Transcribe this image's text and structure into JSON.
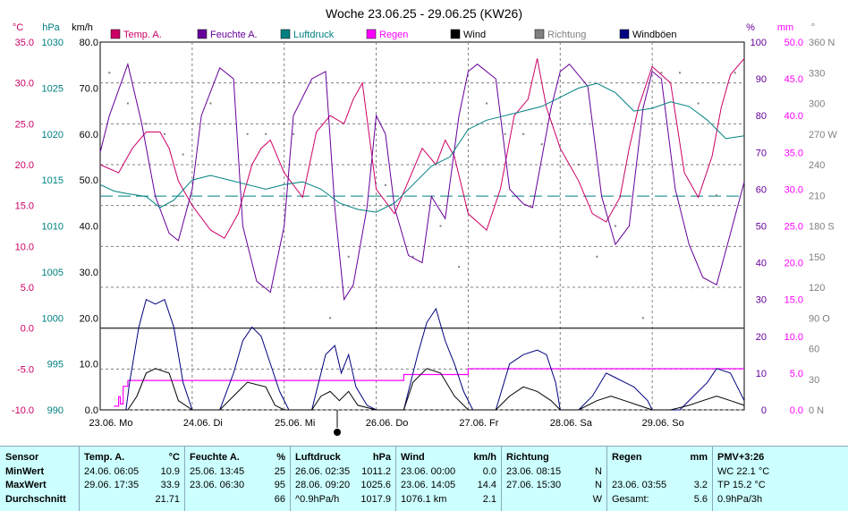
{
  "title": "Woche 23.06.25 - 29.06.25 (KW26)",
  "colors": {
    "temp": "#cc0066",
    "humidity": "#660099",
    "pressure": "#008080",
    "rain": "#ff00ff",
    "wind": "#000000",
    "direction": "#808080",
    "gust": "#000080",
    "table_bg": "#ccffff"
  },
  "axes": {
    "temp_unit": "°C",
    "pressure_unit": "hPa",
    "wind_unit": "km/h",
    "humidity_unit": "%",
    "rain_unit": "mm",
    "direction_unit": "°",
    "temp_ticks": [
      "35.0",
      "30.0",
      "25.0",
      "20.0",
      "15.0",
      "10.0",
      "5.0",
      "0.0",
      "-5.0",
      "-10.0"
    ],
    "pressure_ticks": [
      "1030",
      "1025",
      "1020",
      "1015",
      "1010",
      "1005",
      "1000",
      "995",
      "990"
    ],
    "wind_ticks": [
      "80.0",
      "70.0",
      "60.0",
      "50.0",
      "40.0",
      "30.0",
      "20.0",
      "10.0",
      "0.0"
    ],
    "humidity_ticks": [
      "100",
      "90",
      "80",
      "70",
      "60",
      "50",
      "40",
      "30",
      "20",
      "10",
      "0"
    ],
    "rain_ticks": [
      "50.0",
      "45.0",
      "40.0",
      "35.0",
      "30.0",
      "25.0",
      "20.0",
      "15.0",
      "10.0",
      "5.0",
      "0.0"
    ],
    "direction_ticks": [
      "360 N",
      "330",
      "300",
      "270 W",
      "240",
      "210",
      "180 S",
      "150",
      "120",
      "90 O",
      "60",
      "30",
      "0 N"
    ],
    "day_labels": [
      "23.06.  Mo",
      "24.06.  Di",
      "25.06.  Mi",
      "26.06.  Do",
      "27.06.  Fr",
      "28.06.  Sa",
      "29.06.  So"
    ]
  },
  "legend": [
    {
      "key": "temp",
      "label": "Temp. A.",
      "color": "#cc0066"
    },
    {
      "key": "humidity",
      "label": "Feuchte A.",
      "color": "#660099"
    },
    {
      "key": "pressure",
      "label": "Luftdruck",
      "color": "#008080"
    },
    {
      "key": "rain",
      "label": "Regen",
      "color": "#ff00ff"
    },
    {
      "key": "wind",
      "label": "Wind",
      "color": "#000000"
    },
    {
      "key": "direction",
      "label": "Richtung",
      "color": "#808080"
    },
    {
      "key": "gust",
      "label": "Windböen",
      "color": "#000080"
    }
  ],
  "chart_data": {
    "type": "line",
    "title": "Woche 23.06.25 - 29.06.25 (KW26)",
    "x_categories": [
      "23.06. Mo",
      "24.06. Di",
      "25.06. Mi",
      "26.06. Do",
      "27.06. Fr",
      "28.06. Sa",
      "29.06. So"
    ],
    "series": [
      {
        "name": "Temp. A.",
        "unit": "°C",
        "x_days": [
          0,
          0.2,
          0.35,
          0.5,
          0.65,
          0.75,
          0.85,
          1.0,
          1.2,
          1.35,
          1.5,
          1.65,
          1.75,
          1.85,
          2.0,
          2.2,
          2.35,
          2.5,
          2.65,
          2.75,
          2.85,
          3.0,
          3.2,
          3.35,
          3.5,
          3.65,
          3.75,
          3.85,
          4.0,
          4.2,
          4.35,
          4.5,
          4.65,
          4.75,
          4.85,
          5.0,
          5.2,
          5.35,
          5.5,
          5.65,
          5.75,
          5.85,
          6.0,
          6.2,
          6.35,
          6.5,
          6.65,
          6.75,
          6.85,
          7.0
        ],
        "values": [
          20,
          19,
          22,
          24,
          24,
          22,
          18,
          15,
          12,
          11,
          14,
          20,
          22,
          23,
          19,
          16,
          24,
          26,
          25,
          28,
          30,
          17,
          14,
          18,
          22,
          20,
          23,
          21,
          14,
          12,
          17,
          26,
          28,
          33,
          27,
          22,
          18,
          14,
          13,
          16,
          22,
          27,
          32,
          30,
          19,
          16,
          21,
          27,
          31,
          33
        ]
      },
      {
        "name": "Feuchte A.",
        "unit": "%",
        "x_days": [
          0,
          0.1,
          0.3,
          0.45,
          0.6,
          0.75,
          0.85,
          1.0,
          1.1,
          1.3,
          1.45,
          1.55,
          1.7,
          1.85,
          2.0,
          2.1,
          2.3,
          2.45,
          2.55,
          2.65,
          2.75,
          2.9,
          3.0,
          3.1,
          3.2,
          3.35,
          3.5,
          3.6,
          3.75,
          3.9,
          4.0,
          4.1,
          4.3,
          4.45,
          4.6,
          4.7,
          4.9,
          5.0,
          5.1,
          5.3,
          5.45,
          5.6,
          5.75,
          5.9,
          6.0,
          6.1,
          6.25,
          6.4,
          6.55,
          6.7,
          6.85,
          7.0
        ],
        "values": [
          70,
          80,
          94,
          78,
          58,
          48,
          46,
          60,
          80,
          93,
          90,
          50,
          35,
          32,
          50,
          80,
          90,
          92,
          55,
          30,
          34,
          55,
          80,
          75,
          55,
          42,
          40,
          58,
          52,
          80,
          92,
          94,
          90,
          60,
          56,
          55,
          82,
          92,
          94,
          88,
          58,
          45,
          50,
          82,
          92,
          90,
          60,
          45,
          36,
          34,
          48,
          62
        ]
      },
      {
        "name": "Luftdruck",
        "unit": "hPa",
        "x_days": [
          0,
          0.15,
          0.3,
          0.5,
          0.65,
          0.8,
          1.0,
          1.2,
          1.4,
          1.6,
          1.8,
          2.0,
          2.2,
          2.4,
          2.6,
          2.8,
          3.0,
          3.2,
          3.4,
          3.6,
          3.8,
          4.0,
          4.2,
          4.4,
          4.6,
          4.8,
          5.0,
          5.2,
          5.4,
          5.6,
          5.8,
          6.0,
          6.2,
          6.4,
          6.6,
          6.8,
          7.0
        ],
        "values": [
          1014.5,
          1013.8,
          1013.5,
          1013.2,
          1012.0,
          1012.8,
          1015.0,
          1015.5,
          1015.0,
          1014.5,
          1014.0,
          1014.5,
          1014.8,
          1014.0,
          1012.5,
          1011.8,
          1011.5,
          1012.5,
          1014.5,
          1016.5,
          1017.5,
          1020.5,
          1021.5,
          1022.0,
          1022.5,
          1023.0,
          1024.0,
          1025.0,
          1025.5,
          1024.5,
          1022.5,
          1022.8,
          1023.5,
          1023.0,
          1021.5,
          1019.5,
          1019.8
        ]
      },
      {
        "name": "Regen",
        "unit": "mm",
        "x_days": [
          0.15,
          0.2,
          0.22,
          0.25,
          0.3,
          0.5,
          3.0,
          3.3,
          4.0,
          7.0
        ],
        "values": [
          0.5,
          1.8,
          0.8,
          3.2,
          4.0,
          4.0,
          4.0,
          4.8,
          5.6,
          5.6
        ]
      },
      {
        "name": "Wind",
        "unit": "km/h",
        "x_days": [
          0,
          0.3,
          0.4,
          0.5,
          0.6,
          0.75,
          0.85,
          1.0,
          1.3,
          1.5,
          1.6,
          1.8,
          1.9,
          2.0,
          2.3,
          2.4,
          2.5,
          2.6,
          2.7,
          2.8,
          3.0,
          3.3,
          3.4,
          3.55,
          3.7,
          3.85,
          4.0,
          4.3,
          4.45,
          4.6,
          4.75,
          4.9,
          5.0,
          5.2,
          5.4,
          5.55,
          5.7,
          5.85,
          6.0,
          6.2,
          6.4,
          6.55,
          6.7,
          6.85,
          7.0
        ],
        "values": [
          0,
          0,
          3,
          8,
          9,
          8,
          2,
          0,
          0,
          4,
          6,
          5,
          1,
          0,
          0,
          3,
          4,
          2,
          4,
          1,
          0,
          0,
          6,
          9,
          8,
          3,
          0,
          0,
          3,
          5,
          4,
          2,
          0,
          0,
          2,
          3,
          2,
          1,
          0,
          0,
          1,
          2,
          3,
          2,
          1
        ]
      },
      {
        "name": "Windböen",
        "unit": "km/h",
        "x_days": [
          0,
          0.28,
          0.32,
          0.42,
          0.5,
          0.6,
          0.7,
          0.8,
          0.9,
          1.0,
          1.3,
          1.45,
          1.55,
          1.65,
          1.75,
          1.85,
          1.95,
          2.05,
          2.3,
          2.45,
          2.55,
          2.62,
          2.7,
          2.78,
          2.9,
          3.0,
          3.3,
          3.45,
          3.55,
          3.65,
          3.75,
          3.85,
          3.95,
          4.05,
          4.3,
          4.45,
          4.6,
          4.75,
          4.85,
          4.95,
          5.0,
          5.2,
          5.35,
          5.5,
          5.6,
          5.7,
          5.8,
          5.95,
          6.0,
          6.3,
          6.5,
          6.6,
          6.7,
          6.85,
          7.0
        ],
        "values": [
          0,
          0,
          6,
          18,
          24,
          23,
          24,
          18,
          6,
          0,
          0,
          8,
          15,
          18,
          16,
          10,
          4,
          0,
          0,
          12,
          14,
          8,
          12,
          5,
          1,
          0,
          0,
          12,
          19,
          22,
          15,
          10,
          4,
          0,
          0,
          10,
          12,
          13,
          12,
          6,
          0,
          0,
          3,
          8,
          7,
          6,
          5,
          2,
          0,
          0,
          4,
          6,
          9,
          8,
          2
        ]
      },
      {
        "name": "Richtung",
        "unit": "°",
        "x_days": [
          0.1,
          0.3,
          0.5,
          0.7,
          0.8,
          0.9,
          1.2,
          1.6,
          1.8,
          2.1,
          2.5,
          2.7,
          3.1,
          3.4,
          3.7,
          3.9,
          4.2,
          4.4,
          4.6,
          4.8,
          5.2,
          5.4,
          5.6,
          5.9,
          6.1,
          6.3,
          6.5,
          6.7,
          6.9
        ],
        "values": [
          330,
          300,
          280,
          270,
          200,
          250,
          300,
          270,
          270,
          270,
          90,
          150,
          220,
          150,
          180,
          140,
          300,
          270,
          270,
          260,
          240,
          150,
          180,
          90,
          330,
          330,
          300,
          210,
          330
        ]
      }
    ],
    "reference_lines": [
      {
        "series": "Luftdruck",
        "value": 1013.25,
        "style": "dashed"
      }
    ]
  },
  "table": {
    "row_labels": [
      "Sensor",
      "MinWert",
      "MaxWert",
      "Durchschnitt"
    ],
    "sensors": [
      {
        "name": "Temp. A.",
        "unit": "°C",
        "min_time": "24.06.  06:05",
        "min_val": "10.9",
        "max_time": "29.06.  17:35",
        "max_val": "33.9",
        "avg_time": "",
        "avg_val": "21.71"
      },
      {
        "name": "Feuchte A.",
        "unit": "%",
        "min_time": "25.06.  13:45",
        "min_val": "25",
        "max_time": "23.06.  06:30",
        "max_val": "95",
        "avg_time": "",
        "avg_val": "66"
      },
      {
        "name": "Luftdruck",
        "unit": "hPa",
        "min_time": "26.06.  02:35",
        "min_val": "1011.2",
        "max_time": "28.06.  09:20",
        "max_val": "1025.6",
        "avg_time": "^0.9hPa/h",
        "avg_val": "1017.9"
      },
      {
        "name": "Wind",
        "unit": "km/h",
        "min_time": "23.06.  00:00",
        "min_val": "0.0",
        "max_time": "23.06.  14:05",
        "max_val": "14.4",
        "avg_time": "1076.1 km",
        "avg_val": "2.1"
      },
      {
        "name": "Richtung",
        "unit": "",
        "min_time": "23.06.  08:15",
        "min_val": "N",
        "max_time": "27.06.  15:30",
        "max_val": "N",
        "avg_time": "",
        "avg_val": "W"
      },
      {
        "name": "Regen",
        "unit": "mm",
        "min_time": "",
        "min_val": "",
        "max_time": "23.06.  03:55",
        "max_val": "3.2",
        "avg_time": "Gesamt:",
        "avg_val": "5.6"
      }
    ],
    "pmv": {
      "name": "PMV+3:26",
      "min": "WC 22.1 °C",
      "max": "TP 15.2 °C",
      "avg": "0.9hPa/3h"
    }
  }
}
